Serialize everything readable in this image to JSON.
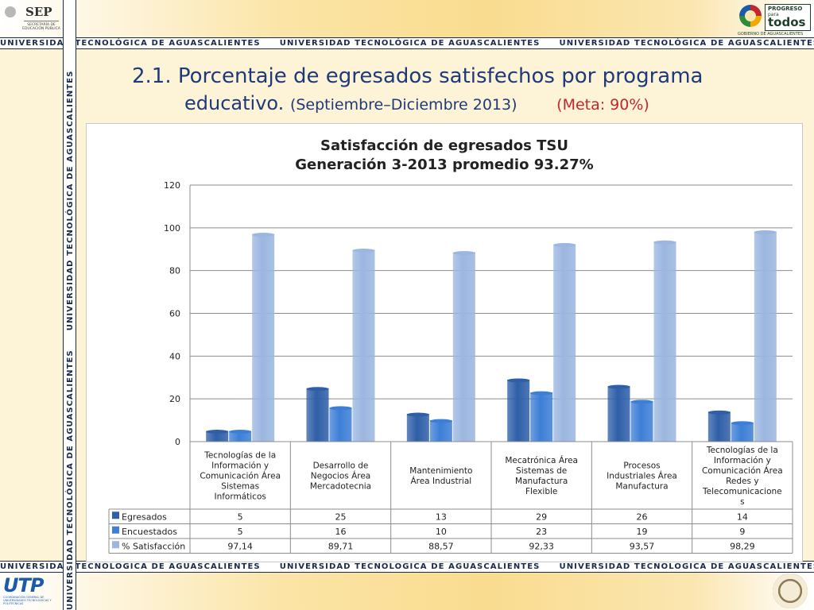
{
  "header": {
    "sep_title": "SEP",
    "sep_subtitle": "SECRETARÍA DE EDUCACIÓN PÚBLICA",
    "progreso_line1": "PROGRESO",
    "progreso_line2": "para",
    "progreso_line3": "todos",
    "progreso_footer": "GOBIERNO DE AGUASCALIENTES"
  },
  "band_text": "UNIVERSIDAD TECNOLÓGICA DE AGUASCALIENTES",
  "footer": {
    "utp_mark": "UTP",
    "utp_subtitle": "COORDINACIÓN GENERAL DE UNIVERSIDADES TECNOLÓGICAS Y POLITÉCNICAS"
  },
  "slide": {
    "title_line1": "2.1. Porcentaje de egresados satisfechos por programa",
    "title_line2": "educativo.",
    "date_range": "(Septiembre–Diciembre  2013)",
    "goal": "(Meta: 90%)"
  },
  "colors": {
    "egresados": "#2f5fa8",
    "encuestados": "#3d7fd6",
    "satisfaccion": "#9bb6e0",
    "title": "#1f3a7a",
    "goal": "#c0282d"
  },
  "chart_data": {
    "type": "bar",
    "title": "Satisfacción de egresados TSU",
    "subtitle": "Generación 3-2013 promedio  93.27%",
    "ylim": [
      0,
      120
    ],
    "yticks": [
      "0",
      "20",
      "40",
      "60",
      "80",
      "100",
      "120"
    ],
    "grid": true,
    "legend": "table-below",
    "categories": [
      [
        "Tecnologías de la",
        "Información y",
        "Comunicación Área",
        "Sistemas",
        "Informáticos"
      ],
      [
        "Desarrollo de",
        "Negocios Área",
        "Mercadotecnia"
      ],
      [
        "Mantenimiento",
        "Área Industrial"
      ],
      [
        "Mecatrónica Área",
        "Sistemas de",
        "Manufactura",
        "Flexible"
      ],
      [
        "Procesos",
        "Industriales Área",
        "Manufactura"
      ],
      [
        "Tecnologías de la",
        "Información y",
        "Comunicación Área",
        "Redes y",
        "Telecomunicacione",
        "s"
      ]
    ],
    "series": [
      {
        "name": "Egresados",
        "values": [
          5,
          25,
          13,
          29,
          26,
          14
        ],
        "labels": [
          "5",
          "25",
          "13",
          "29",
          "26",
          "14"
        ]
      },
      {
        "name": "Encuestados",
        "values": [
          5,
          16,
          10,
          23,
          19,
          9
        ],
        "labels": [
          "5",
          "16",
          "10",
          "23",
          "19",
          "9"
        ]
      },
      {
        "name": "% Satisfacción",
        "values": [
          97.14,
          89.71,
          88.57,
          92.33,
          93.57,
          98.29
        ],
        "labels": [
          "97,14",
          "89,71",
          "88,57",
          "92,33",
          "93,57",
          "98,29"
        ]
      }
    ]
  }
}
